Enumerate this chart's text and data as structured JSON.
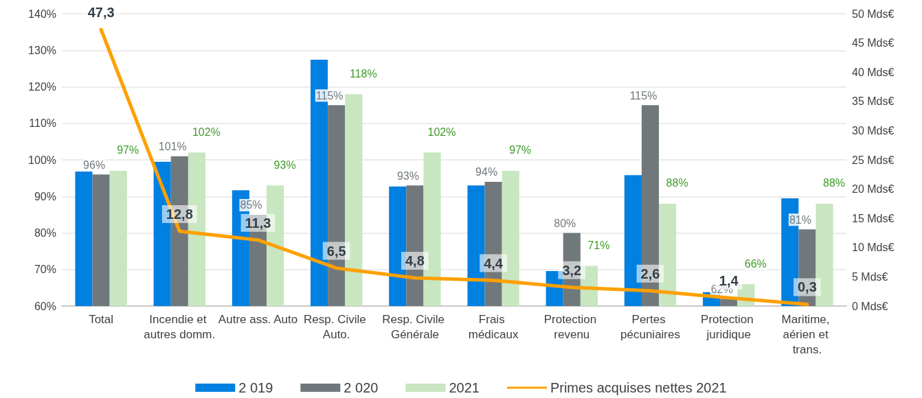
{
  "chart_data": {
    "type": "bar",
    "categories": [
      "Total",
      "Incendie et autres domm.",
      "Autre ass. Auto",
      "Resp. Civile Auto.",
      "Resp. Civile Générale",
      "Frais médicaux",
      "Protection revenu",
      "Pertes pécuniaires",
      "Protection juridique",
      "Maritime, aérien et trans."
    ],
    "series": [
      {
        "name": "2 019",
        "color": "#0080e0",
        "values": [
          96.8,
          99.5,
          91.7,
          127.4,
          92.7,
          93,
          69.6,
          95.8,
          63.8,
          89.5
        ]
      },
      {
        "name": "2 020",
        "color": "#70787c",
        "values": [
          96,
          101,
          85,
          115,
          93,
          94,
          80,
          115,
          62,
          81
        ],
        "value_labels": [
          "96%",
          "101%",
          "85%",
          "115%",
          "93%",
          "94%",
          "80%",
          "115%",
          "62%",
          "81%"
        ]
      },
      {
        "name": "2021",
        "color": "#c8e6c0",
        "values": [
          97,
          102,
          93,
          118,
          102,
          97,
          71,
          88,
          66,
          88
        ],
        "value_labels": [
          "97%",
          "102%",
          "93%",
          "118%",
          "102%",
          "97%",
          "71%",
          "88%",
          "66%",
          "88%"
        ]
      },
      {
        "name": "Primes acquises nettes 2021",
        "type": "line",
        "axis": "y2",
        "color": "#ffa000",
        "values": [
          47.3,
          12.8,
          11.3,
          6.5,
          4.8,
          4.4,
          3.2,
          2.6,
          1.4,
          0.3
        ],
        "value_labels": [
          "47,3",
          "12,8",
          "11,3",
          "6,5",
          "4,8",
          "4,4",
          "3,2",
          "2,6",
          "1,4",
          "0,3"
        ]
      }
    ],
    "ylim": [
      60,
      140
    ],
    "yticks": [
      {
        "value": 60,
        "label": "60%"
      },
      {
        "value": 70,
        "label": "70%"
      },
      {
        "value": 80,
        "label": "80%"
      },
      {
        "value": 90,
        "label": "90%"
      },
      {
        "value": 100,
        "label": "100%"
      },
      {
        "value": 110,
        "label": "110%"
      },
      {
        "value": 120,
        "label": "120%"
      },
      {
        "value": 130,
        "label": "130%"
      },
      {
        "value": 140,
        "label": "140%"
      }
    ],
    "y2lim": [
      0,
      50
    ],
    "y2ticks": [
      {
        "value": 0,
        "label": "0 Mds€"
      },
      {
        "value": 5,
        "label": "5 Mds€"
      },
      {
        "value": 10,
        "label": "10 Mds€"
      },
      {
        "value": 15,
        "label": "15 Mds€"
      },
      {
        "value": 20,
        "label": "20 Mds€"
      },
      {
        "value": 25,
        "label": "25 Mds€"
      },
      {
        "value": 30,
        "label": "30 Mds€"
      },
      {
        "value": 35,
        "label": "35 Mds€"
      },
      {
        "value": 40,
        "label": "40 Mds€"
      },
      {
        "value": 45,
        "label": "45 Mds€"
      },
      {
        "value": 50,
        "label": "50 Mds€"
      }
    ],
    "grid": "y",
    "legend": "bottom",
    "marker": "none",
    "line_style": "solid"
  }
}
